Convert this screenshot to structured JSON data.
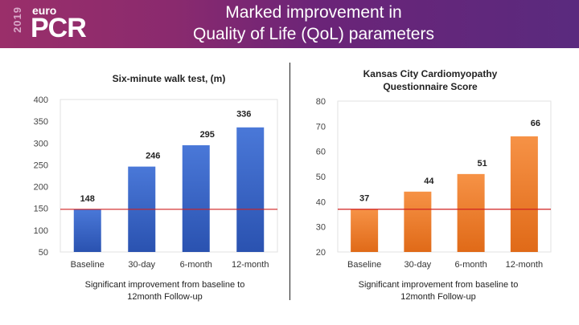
{
  "header": {
    "logo_year": "2019",
    "logo_euro": "euro",
    "logo_pcr": "PCR",
    "title_line1": "Marked improvement in",
    "title_line2": "Quality of Life (QoL) parameters"
  },
  "chart_data": [
    {
      "type": "bar",
      "title": "Six-minute walk test, (m)",
      "categories": [
        "Baseline",
        "30-day",
        "6-month",
        "12-month"
      ],
      "values": [
        148,
        246,
        295,
        336
      ],
      "ylim": [
        50,
        400
      ],
      "yticks": [
        50,
        100,
        150,
        200,
        250,
        300,
        350,
        400
      ],
      "baseline_line": 148,
      "color": "#3a64c4",
      "footnote_line1": "Significant improvement from baseline to",
      "footnote_line2": "12month Follow-up"
    },
    {
      "type": "bar",
      "title_line1": "Kansas City Cardiomyopathy",
      "title_line2": "Questionnaire Score",
      "categories": [
        "Baseline",
        "30-day",
        "6-month",
        "12-month"
      ],
      "values": [
        37,
        44,
        51,
        66
      ],
      "ylim": [
        20,
        80
      ],
      "yticks": [
        20,
        30,
        40,
        50,
        60,
        70,
        80
      ],
      "baseline_line": 37,
      "color": "#ee7d2e",
      "footnote_line1": "Significant improvement from baseline to",
      "footnote_line2": "12month Follow-up"
    }
  ]
}
